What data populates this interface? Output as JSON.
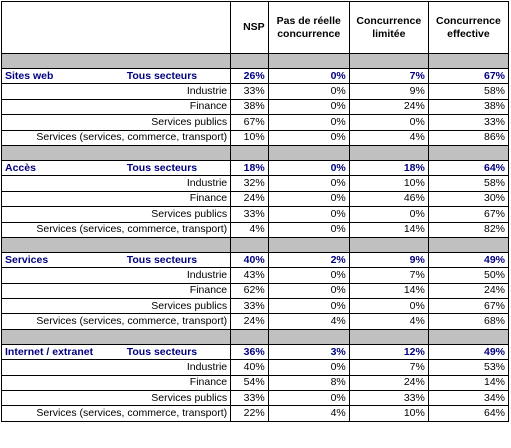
{
  "columns": [
    "NSP",
    "Pas de réelle concurrence",
    "Concurrence limitée",
    "Concurrence effective"
  ],
  "colors": {
    "heading_text": "#000080",
    "separator": "#c0c0c0",
    "border": "#000000"
  },
  "groups": [
    {
      "title": "Sites web",
      "sector": "Tous secteurs",
      "values": [
        "26%",
        "0%",
        "7%",
        "67%"
      ],
      "rows": [
        {
          "label": "Industrie",
          "values": [
            "33%",
            "0%",
            "9%",
            "58%"
          ]
        },
        {
          "label": "Finance",
          "values": [
            "38%",
            "0%",
            "24%",
            "38%"
          ]
        },
        {
          "label": "Services publics",
          "values": [
            "67%",
            "0%",
            "0%",
            "33%"
          ]
        },
        {
          "label": "Services (services, commerce, transport)",
          "values": [
            "10%",
            "0%",
            "4%",
            "86%"
          ]
        }
      ]
    },
    {
      "title": "Accès",
      "sector": "Tous secteurs",
      "values": [
        "18%",
        "0%",
        "18%",
        "64%"
      ],
      "rows": [
        {
          "label": "Industrie",
          "values": [
            "32%",
            "0%",
            "10%",
            "58%"
          ]
        },
        {
          "label": "Finance",
          "values": [
            "24%",
            "0%",
            "46%",
            "30%"
          ]
        },
        {
          "label": "Services publics",
          "values": [
            "33%",
            "0%",
            "0%",
            "67%"
          ]
        },
        {
          "label": "Services (services, commerce, transport)",
          "values": [
            "4%",
            "0%",
            "14%",
            "82%"
          ]
        }
      ]
    },
    {
      "title": "Services",
      "sector": "Tous secteurs",
      "values": [
        "40%",
        "2%",
        "9%",
        "49%"
      ],
      "rows": [
        {
          "label": "Industrie",
          "values": [
            "43%",
            "0%",
            "7%",
            "50%"
          ]
        },
        {
          "label": "Finance",
          "values": [
            "62%",
            "0%",
            "14%",
            "24%"
          ]
        },
        {
          "label": "Services publics",
          "values": [
            "33%",
            "0%",
            "0%",
            "67%"
          ]
        },
        {
          "label": "Services (services, commerce, transport)",
          "values": [
            "24%",
            "4%",
            "4%",
            "68%"
          ]
        }
      ]
    },
    {
      "title": "Internet / extranet",
      "sector": "Tous secteurs",
      "values": [
        "36%",
        "3%",
        "12%",
        "49%"
      ],
      "rows": [
        {
          "label": "Industrie",
          "values": [
            "40%",
            "0%",
            "7%",
            "53%"
          ]
        },
        {
          "label": "Finance",
          "values": [
            "54%",
            "8%",
            "24%",
            "14%"
          ]
        },
        {
          "label": "Services publics",
          "values": [
            "33%",
            "0%",
            "33%",
            "34%"
          ]
        },
        {
          "label": "Services (services, commerce, transport)",
          "values": [
            "22%",
            "4%",
            "10%",
            "64%"
          ]
        }
      ]
    }
  ]
}
